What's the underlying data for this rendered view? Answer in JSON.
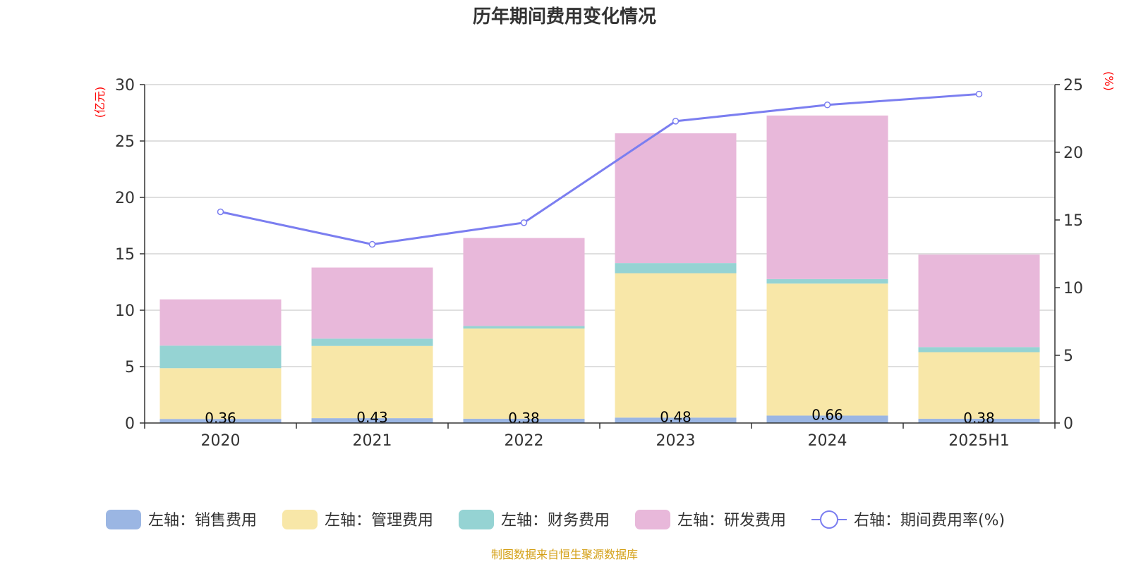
{
  "chart_data": {
    "type": "bar",
    "title": "历年期间费用变化情况",
    "categories": [
      "2020",
      "2021",
      "2022",
      "2023",
      "2024",
      "2025H1"
    ],
    "series": [
      {
        "name": "左轴：销售费用",
        "axis": "left",
        "color": "#9bb6e3",
        "values": [
          0.36,
          0.43,
          0.38,
          0.48,
          0.66,
          0.38
        ],
        "labels": [
          "0.36",
          "0.43",
          "0.38",
          "0.48",
          "0.66",
          "0.38"
        ]
      },
      {
        "name": "左轴：管理费用",
        "axis": "left",
        "color": "#f8e7a8",
        "values": [
          4.5,
          6.4,
          8.0,
          12.8,
          11.7,
          5.9
        ]
      },
      {
        "name": "左轴：财务费用",
        "axis": "left",
        "color": "#95d3d3",
        "values": [
          2.0,
          0.65,
          0.22,
          0.9,
          0.4,
          0.45
        ]
      },
      {
        "name": "左轴：研发费用",
        "axis": "left",
        "color": "#e8b8da",
        "values": [
          4.1,
          6.3,
          7.8,
          11.5,
          14.5,
          8.2
        ]
      },
      {
        "name": "右轴：期间费用率(%)",
        "axis": "right",
        "type": "line",
        "color": "#7b7ef0",
        "values": [
          15.6,
          13.2,
          14.8,
          22.3,
          23.5,
          24.3
        ]
      }
    ],
    "left_axis": {
      "unit": "(亿元)",
      "min": 0,
      "max": 30,
      "ticks": [
        0,
        5,
        10,
        15,
        20,
        25,
        30
      ]
    },
    "right_axis": {
      "unit": "(%)",
      "min": 0,
      "max": 25,
      "ticks": [
        0,
        5,
        10,
        15,
        20,
        25
      ]
    },
    "grid": true,
    "legend_position": "bottom",
    "source": "制图数据来自恒生聚源数据库"
  }
}
